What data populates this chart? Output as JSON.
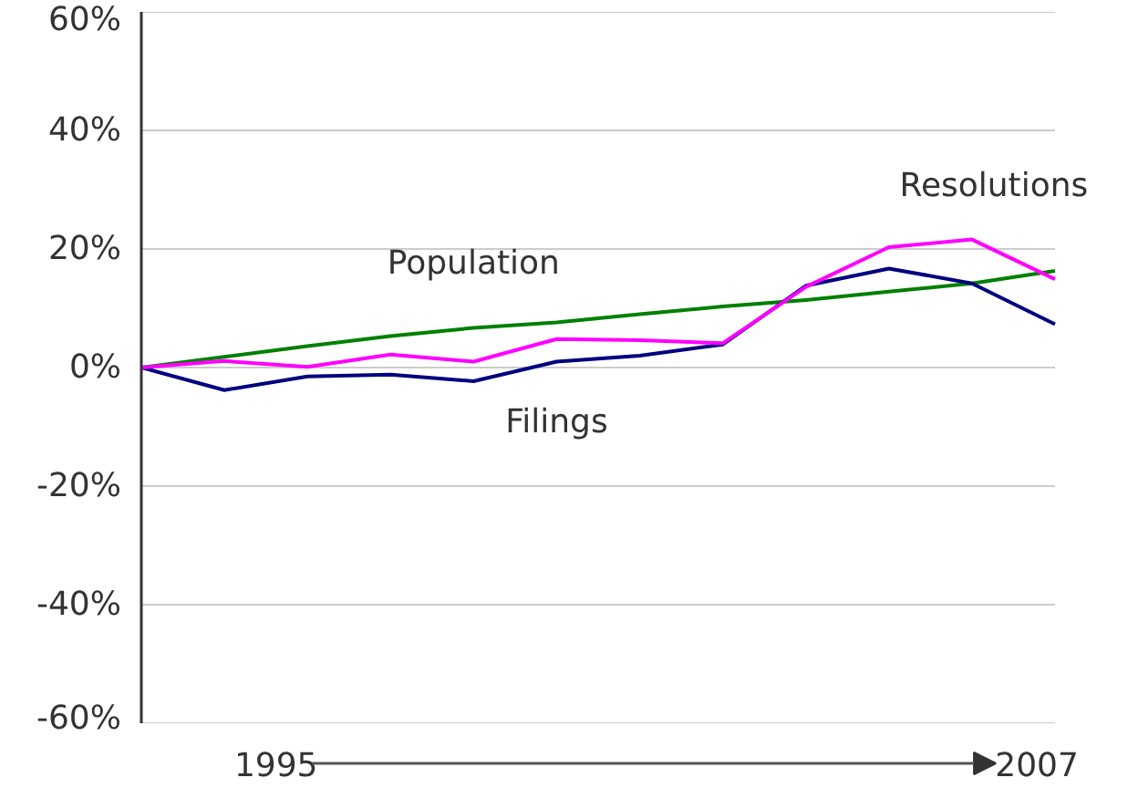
{
  "chart_data": {
    "type": "line",
    "categories": [
      null,
      null,
      null,
      null,
      null,
      null,
      null,
      null,
      null,
      null,
      null,
      null
    ],
    "series": [
      {
        "name": "Population",
        "color": "#008000",
        "values": [
          0,
          1.8,
          3.6,
          5.3,
          6.7,
          7.6,
          9.0,
          10.3,
          11.4,
          12.8,
          14.2,
          16.3
        ]
      },
      {
        "name": "Filings",
        "color": "#000080",
        "values": [
          0,
          -3.8,
          -1.5,
          -1.2,
          -2.3,
          1.0,
          2.0,
          3.9,
          13.8,
          16.7,
          14.2,
          7.3
        ]
      },
      {
        "name": "Resolutions",
        "color": "#ff00ff",
        "values": [
          0,
          1.1,
          0.1,
          2.2,
          1.0,
          4.8,
          4.6,
          4.1,
          13.6,
          20.3,
          21.6,
          14.9
        ]
      }
    ],
    "ylim": [
      -60,
      60
    ],
    "yticks": [
      {
        "value": -60,
        "label": "-60%"
      },
      {
        "value": -40,
        "label": "-40%"
      },
      {
        "value": -20,
        "label": "-20%"
      },
      {
        "value": 0,
        "label": "0%"
      },
      {
        "value": 20,
        "label": "20%"
      },
      {
        "value": 40,
        "label": "40%"
      },
      {
        "value": 60,
        "label": "60%"
      }
    ],
    "grid": "y",
    "tick_labels": "y",
    "marker": "none",
    "line_style": "solid",
    "annotations": [
      "1995",
      "2007"
    ]
  }
}
